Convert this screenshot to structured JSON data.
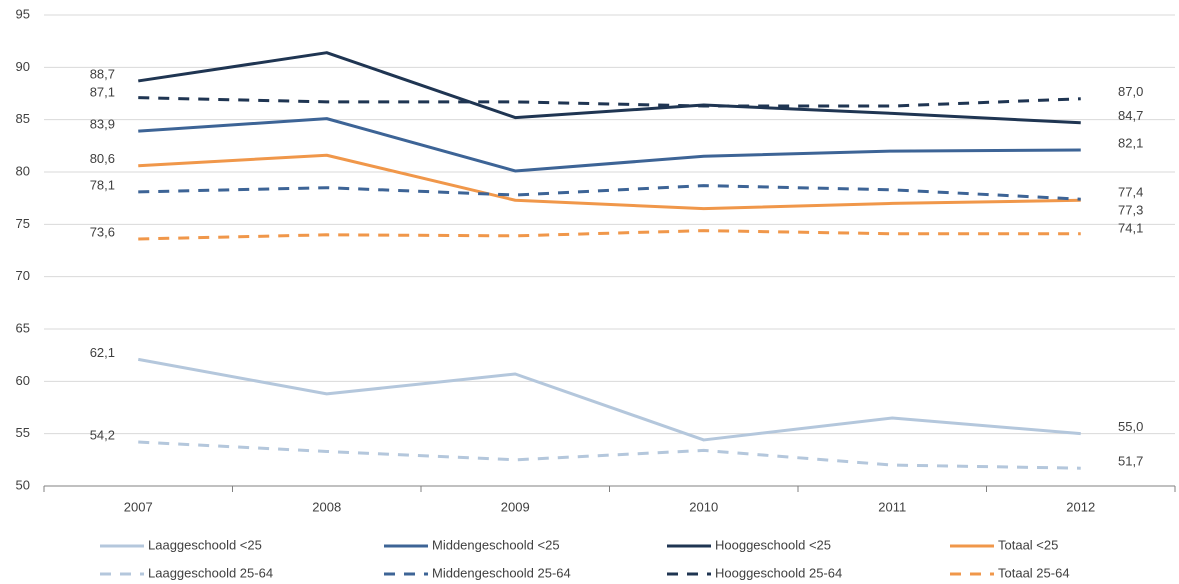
{
  "chart_data": {
    "type": "line",
    "categories": [
      "2007",
      "2008",
      "2009",
      "2010",
      "2011",
      "2012"
    ],
    "ylim": [
      50,
      95
    ],
    "yticks": [
      50,
      55,
      60,
      65,
      70,
      75,
      80,
      85,
      90,
      95
    ],
    "grid": true,
    "legend": "bottom",
    "series": [
      {
        "name": "Laaggeschoold <25",
        "color": "#b4c7dc",
        "dashed": false,
        "values": [
          62.1,
          58.8,
          60.7,
          54.4,
          56.5,
          55.0
        ],
        "value_labels": [
          "62,1",
          null,
          null,
          null,
          null,
          "55,0"
        ]
      },
      {
        "name": "Middengeschoold <25",
        "color": "#3d6496",
        "dashed": false,
        "values": [
          83.9,
          85.1,
          80.1,
          81.5,
          82.0,
          82.1
        ],
        "value_labels": [
          "83,9",
          null,
          null,
          null,
          null,
          "82,1"
        ]
      },
      {
        "name": "Hooggeschoold <25",
        "color": "#1f3552",
        "dashed": false,
        "values": [
          88.7,
          91.4,
          85.2,
          86.4,
          85.6,
          84.7
        ],
        "value_labels": [
          "88,7",
          null,
          null,
          null,
          null,
          "84,7"
        ]
      },
      {
        "name": "Totaal <25",
        "color": "#f0974a",
        "dashed": false,
        "values": [
          80.6,
          81.6,
          77.3,
          76.5,
          77.0,
          77.3
        ],
        "value_labels": [
          "80,6",
          null,
          null,
          null,
          null,
          "77,3"
        ]
      },
      {
        "name": "Laaggeschoold 25-64",
        "color": "#b4c7dc",
        "dashed": true,
        "values": [
          54.2,
          53.3,
          52.5,
          53.4,
          52.0,
          51.7
        ],
        "value_labels": [
          "54,2",
          null,
          null,
          null,
          null,
          "51,7"
        ]
      },
      {
        "name": "Middengeschoold 25-64",
        "color": "#3d6496",
        "dashed": true,
        "values": [
          78.1,
          78.5,
          77.8,
          78.7,
          78.3,
          77.4
        ],
        "value_labels": [
          "78,1",
          null,
          null,
          null,
          null,
          "77,4"
        ]
      },
      {
        "name": "Hooggeschoold 25-64",
        "color": "#1f3552",
        "dashed": true,
        "values": [
          87.1,
          86.7,
          86.7,
          86.3,
          86.3,
          87.0
        ],
        "value_labels": [
          "87,1",
          null,
          null,
          null,
          null,
          "87,0"
        ]
      },
      {
        "name": "Totaal 25-64",
        "color": "#f0974a",
        "dashed": true,
        "values": [
          73.6,
          74.0,
          73.9,
          74.4,
          74.1,
          74.1
        ],
        "value_labels": [
          "73,6",
          null,
          null,
          null,
          null,
          "74,1"
        ]
      }
    ]
  }
}
